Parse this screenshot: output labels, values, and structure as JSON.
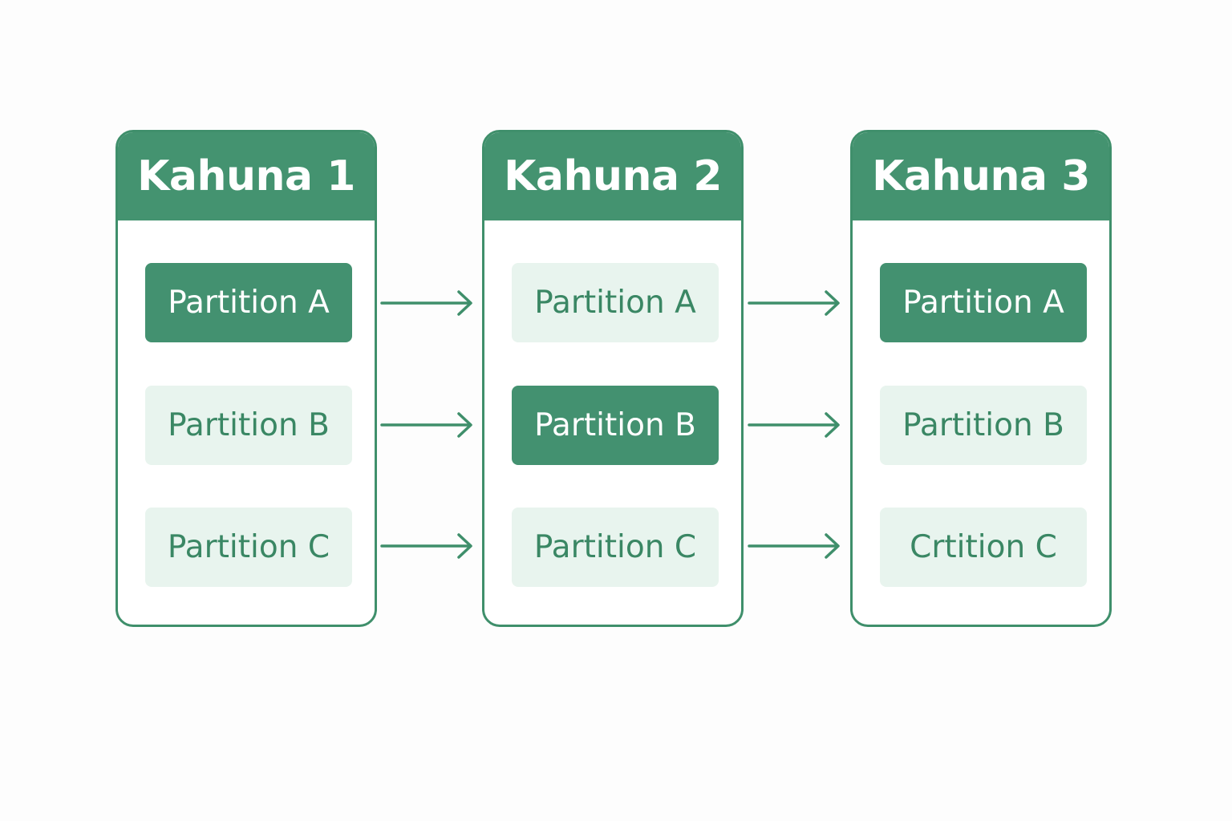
{
  "colors": {
    "primary": "#449370",
    "primary_border": "#3f8f6b",
    "light_fill": "#e8f4ee",
    "light_text": "#3a8764",
    "background": "#fdfdfd"
  },
  "nodes": [
    {
      "title": "Kahuna 1",
      "partitions": [
        {
          "label": "Partition A",
          "active": true
        },
        {
          "label": "Partition B",
          "active": false
        },
        {
          "label": "Partition C",
          "active": false
        }
      ]
    },
    {
      "title": "Kahuna 2",
      "partitions": [
        {
          "label": "Partition A",
          "active": false
        },
        {
          "label": "Partition B",
          "active": true
        },
        {
          "label": "Partition C",
          "active": false
        }
      ]
    },
    {
      "title": "Kahuna 3",
      "partitions": [
        {
          "label": "Partition A",
          "active": true
        },
        {
          "label": "Partition B",
          "active": false
        },
        {
          "label": "Crtition C",
          "active": false
        }
      ]
    }
  ],
  "connections": [
    {
      "from": "Kahuna 1",
      "to": "Kahuna 2",
      "rows": [
        "Partition A",
        "Partition B",
        "Partition C"
      ]
    },
    {
      "from": "Kahuna 2",
      "to": "Kahuna 3",
      "rows": [
        "Partition A",
        "Partition B",
        "Partition C"
      ]
    }
  ]
}
